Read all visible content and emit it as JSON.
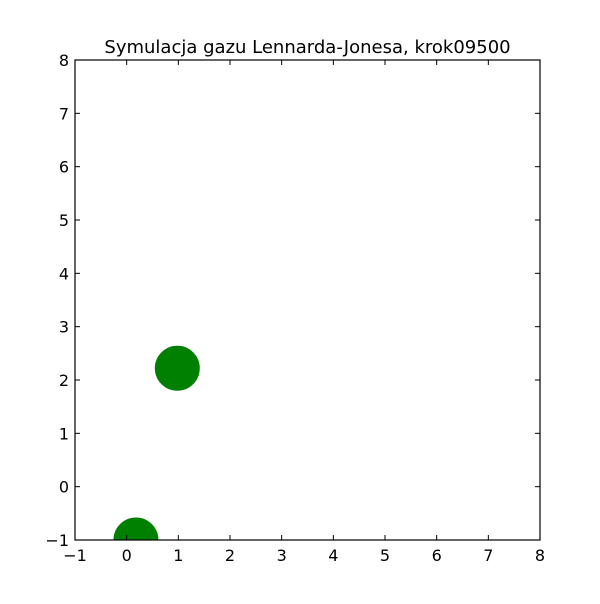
{
  "chart_data": {
    "type": "scatter",
    "title": "Symulacja gazu Lennarda-Jonesa, krok09500",
    "xlabel": "",
    "ylabel": "",
    "xlim": [
      -1,
      8
    ],
    "ylim": [
      -1,
      8
    ],
    "x_ticks": [
      "−1",
      "0",
      "1",
      "2",
      "3",
      "4",
      "5",
      "6",
      "7",
      "8"
    ],
    "y_ticks": [
      "−1",
      "0",
      "1",
      "2",
      "3",
      "4",
      "5",
      "6",
      "7",
      "8"
    ],
    "grid": false,
    "marker_color": "#008000",
    "series": [
      {
        "x": [
          0.98,
          0.18
        ],
        "y": [
          2.22,
          -1.0
        ]
      }
    ]
  }
}
